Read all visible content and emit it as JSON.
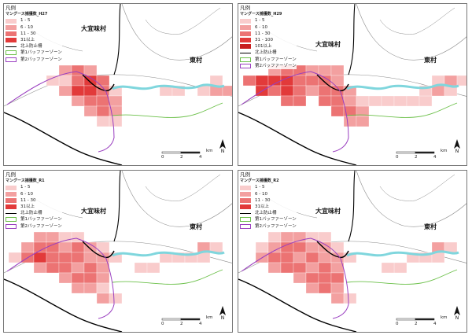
{
  "colors": {
    "class1": "#f9cccc",
    "class2": "#f3a0a0",
    "class3": "#ec7373",
    "class4": "#e23a3a",
    "fence": "#000000",
    "buffer1": "#6cc04a",
    "buffer2": "#9a3fc0",
    "water": "#7fd6dd",
    "boundary": "#8c8c8c"
  },
  "labels": {
    "village_center": "大宜味村",
    "village_east": "東村",
    "north": "N",
    "scale_0": "0",
    "scale_2": "2",
    "scale_4": "4",
    "scale_unit": "km"
  },
  "panels": [
    {
      "legend_title": "凡例",
      "subtitle": "マングース捕獲数_H27",
      "classes": [
        "1 - 5",
        "6 - 10",
        "11 - 30",
        "31以上"
      ],
      "fence_label": "北上防止柵",
      "buffer1_label": "第1バッファーゾーン",
      "buffer2_label": "第2バッファーゾーン"
    },
    {
      "legend_title": "凡例",
      "subtitle": "マングース捕獲数_H29",
      "classes": [
        "1 - 5",
        "6 - 10",
        "11 - 30",
        "31 - 100",
        "101以上"
      ],
      "fence_label": "北上防止柵",
      "buffer1_label": "第1バッファーゾーン",
      "buffer2_label": "第2バッファーゾーン"
    },
    {
      "legend_title": "凡例",
      "subtitle": "マングース捕獲数_R1",
      "classes": [
        "1 - 5",
        "6 - 10",
        "11 - 30",
        "31以上"
      ],
      "fence_label": "北上防止柵",
      "buffer1_label": "第1バッファーゾーン",
      "buffer2_label": "第2バッファーゾーン"
    },
    {
      "legend_title": "凡例",
      "subtitle": "マングース捕獲数_R2",
      "classes": [
        "1 - 5",
        "6 - 10",
        "11 - 30",
        "31以上"
      ],
      "fence_label": "北上防止柵",
      "buffer1_label": "第1バッファーゾーン",
      "buffer2_label": "第2バッファーゾーン"
    }
  ]
}
